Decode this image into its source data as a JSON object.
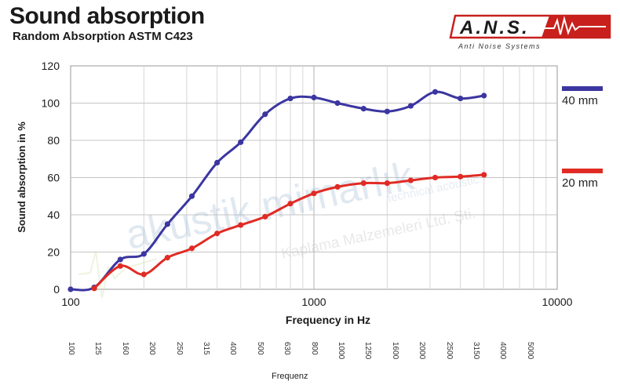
{
  "header": {
    "title": "Sound absorption",
    "subtitle": "Random Absorption ASTM C423"
  },
  "logo": {
    "text": "A.N.S.",
    "tagline": "Anti Noise Systems"
  },
  "watermark": {
    "line1": "akustik mimarlık",
    "line2": "technical acoustic",
    "line3": "Kaplama Malzemeleri Ltd. Şti."
  },
  "colors": {
    "series_40": "#3b36a0",
    "series_20": "#e02b24",
    "logo_red": "#c8201c"
  },
  "chart_data": {
    "type": "line",
    "xlabel": "Frequency in Hz",
    "ylabel": "Sound absorption in %",
    "x_scale": "log",
    "xlim": [
      100,
      10000
    ],
    "ylim": [
      0,
      120
    ],
    "x_ticks": [
      "100",
      "1000",
      "10000"
    ],
    "y_ticks": [
      "0",
      "20",
      "40",
      "60",
      "80",
      "100",
      "120"
    ],
    "grid": true,
    "legend_position": "right",
    "series": [
      {
        "name": "40 mm",
        "color": "#3b36a0",
        "x": [
          100,
          125,
          160,
          200,
          250,
          315,
          400,
          500,
          630,
          800,
          1000,
          1250,
          1600,
          2000,
          2500,
          3150,
          4000,
          5000
        ],
        "y": [
          0,
          1,
          16,
          19,
          35,
          50,
          68,
          79,
          94,
          102.5,
          103,
          100,
          97,
          95.5,
          98.5,
          106,
          102.5,
          104
        ]
      },
      {
        "name": "20 mm",
        "color": "#e02b24",
        "x": [
          125,
          160,
          200,
          250,
          315,
          400,
          500,
          630,
          800,
          1000,
          1250,
          1600,
          2000,
          2500,
          3150,
          4000,
          5000
        ],
        "y": [
          0.5,
          12.5,
          8,
          17,
          22,
          30,
          34.5,
          39,
          46,
          51.5,
          55,
          57,
          57,
          58.5,
          60,
          60.5,
          61.5
        ]
      }
    ]
  },
  "freq_table": {
    "caption": "Frequenz",
    "values": [
      "100",
      "125",
      "160",
      "200",
      "250",
      "315",
      "400",
      "500",
      "630",
      "800",
      "1000",
      "1250",
      "1600",
      "2000",
      "2500",
      "3150",
      "4000",
      "5000"
    ]
  }
}
